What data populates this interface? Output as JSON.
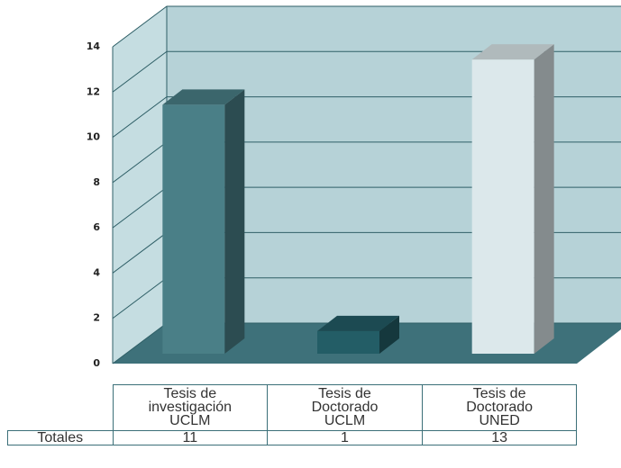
{
  "chart_data": {
    "type": "bar3d",
    "categories": [
      "Tesis de\ninvestigación\nUCLM",
      "Tesis de\nDoctorado\nUCLM",
      "Tesis de\nDoctorado\nUNED"
    ],
    "series": [
      {
        "name": "Totales",
        "values": [
          11,
          1,
          13
        ],
        "colors": [
          "#4a7f87",
          "#235d66",
          "#dce8eb"
        ]
      }
    ],
    "ylim": [
      0,
      14
    ],
    "yticks": [
      0,
      2,
      4,
      6,
      8,
      10,
      12,
      14
    ],
    "grid": true
  }
}
